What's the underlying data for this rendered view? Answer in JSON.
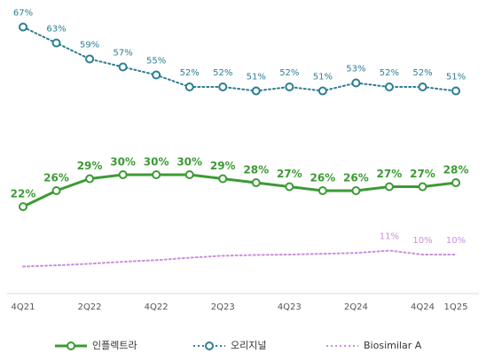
{
  "chart_data": {
    "type": "line",
    "categories": [
      "4Q21",
      null,
      "2Q22",
      null,
      "4Q22",
      null,
      "2Q23",
      null,
      "4Q23",
      null,
      "2Q24",
      null,
      "4Q24",
      "1Q25"
    ],
    "ylim": [
      0,
      70
    ],
    "series": [
      {
        "name": "인플렉트라",
        "color": "#3c9a35",
        "style": "solid",
        "markers": true,
        "values": [
          22,
          26,
          29,
          30,
          30,
          30,
          29,
          28,
          27,
          26,
          26,
          27,
          27,
          28
        ],
        "value_labels": [
          "22%",
          "26%",
          "29%",
          "30%",
          "30%",
          "30%",
          "29%",
          "28%",
          "27%",
          "26%",
          "26%",
          "27%",
          "27%",
          "28%"
        ]
      },
      {
        "name": "오리지널",
        "color": "#2d7d93",
        "style": "dotted",
        "markers": true,
        "values": [
          67,
          63,
          59,
          57,
          55,
          52,
          52,
          51,
          52,
          51,
          53,
          52,
          52,
          51
        ],
        "value_labels": [
          "67%",
          "63%",
          "59%",
          "57%",
          "55%",
          "52%",
          "52%",
          "51%",
          "52%",
          "51%",
          "53%",
          "52%",
          "52%",
          "51%"
        ]
      },
      {
        "name": "Biosimilar A",
        "color": "#c98fdc",
        "style": "dotted",
        "markers": false,
        "values": [
          7,
          7.3,
          7.7,
          8.2,
          8.6,
          9.2,
          9.7,
          9.9,
          10,
          10.2,
          10.4,
          11,
          10,
          10
        ],
        "value_labels": [
          null,
          null,
          null,
          null,
          null,
          null,
          null,
          null,
          null,
          null,
          null,
          "11%",
          "10%",
          "10%"
        ]
      }
    ]
  }
}
